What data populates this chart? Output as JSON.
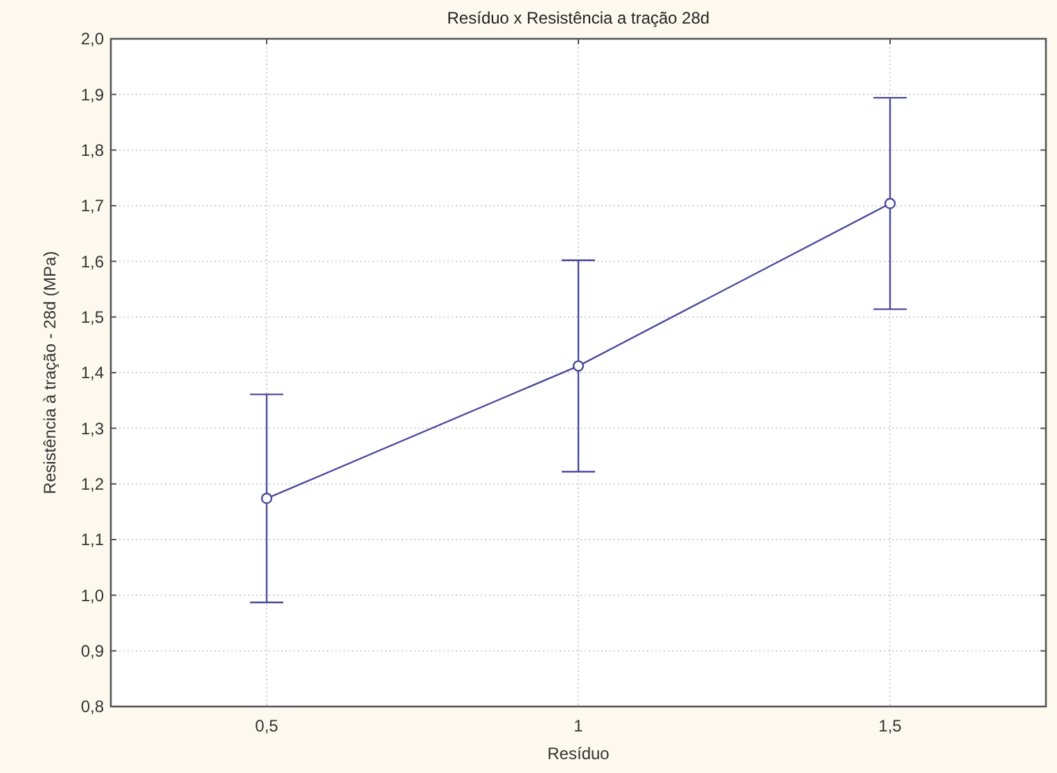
{
  "chart_data": {
    "type": "line",
    "title": "Resíduo x Resistência a tração 28d",
    "xlabel": "Resíduo",
    "ylabel": "Resistência à tração - 28d (MPa)",
    "x": [
      0.5,
      1,
      1.5
    ],
    "series": [
      {
        "color": "#4a4a9c",
        "values": [
          1.174,
          1.412,
          1.704
        ],
        "errors": [
          0.187,
          0.19,
          0.19
        ]
      }
    ],
    "xlim": [
      0.25,
      1.75
    ],
    "xticks": [
      {
        "value": 0.5,
        "label": "0,5"
      },
      1,
      {
        "value": 1.5,
        "label": "1,5"
      }
    ],
    "ylim": [
      0.8,
      2.0
    ],
    "yticks": [
      {
        "value": 0.8,
        "label": "0,8"
      },
      {
        "value": 0.9,
        "label": "0,9"
      },
      {
        "value": 1.0,
        "label": "1,0"
      },
      {
        "value": 1.1,
        "label": "1,1"
      },
      {
        "value": 1.2,
        "label": "1,2"
      },
      {
        "value": 1.3,
        "label": "1,3"
      },
      {
        "value": 1.4,
        "label": "1,4"
      },
      {
        "value": 1.5,
        "label": "1,5"
      },
      {
        "value": 1.6,
        "label": "1,6"
      },
      {
        "value": 1.7,
        "label": "1,7"
      },
      {
        "value": 1.8,
        "label": "1,8"
      },
      {
        "value": 1.9,
        "label": "1,9"
      },
      {
        "value": 2.0,
        "label": "2,0"
      }
    ],
    "grid": true,
    "marker": "circle",
    "line_style": "solid"
  }
}
